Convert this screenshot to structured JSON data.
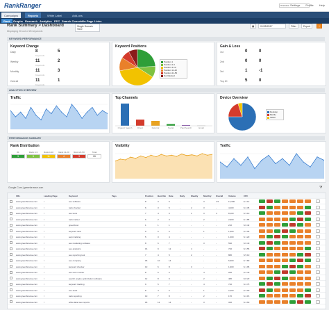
{
  "app": {
    "logo": "RankRanger"
  },
  "top": {
    "links": [
      "Settings",
      "Profile",
      "Help"
    ],
    "search_value": "Overview"
  },
  "tabs": [
    {
      "label": "Campaigns",
      "state": "light"
    },
    {
      "label": "Reports",
      "state": "active"
    },
    {
      "label": "White Label",
      "state": "dark"
    },
    {
      "label": "Add-ons",
      "state": "dark"
    }
  ],
  "nav": [
    "Rank",
    "Graphs",
    "Research",
    "Analytics",
    "PPC",
    "Search Console",
    "On-Page",
    "Links"
  ],
  "header": {
    "title": "Rank Summary > Dashboard",
    "select": "Single Domain View",
    "note": "Displaying 26 out of 26 keywords",
    "date": "01/05/2017",
    "buttons": [
      "Filter",
      "Export"
    ]
  },
  "sections": {
    "keyword_performance": "KEYWORD PERFORMANCE",
    "analytics_overview": "ANALYTICS OVERVIEW",
    "performance_summary": "PERFORMANCE SUMMARY"
  },
  "keyword_change": {
    "title": "Keyword Change",
    "rows": [
      {
        "label": "Daily",
        "value": "8",
        "sub": "Keywords"
      },
      {
        "label": "Weekly",
        "value": "11",
        "sub": "Keywords"
      },
      {
        "label": "Monthly",
        "value": "11",
        "sub": "Keywords"
      },
      {
        "label": "Overall",
        "value": "11",
        "sub": "Keywords"
      }
    ],
    "right_values": [
      "5",
      "2",
      "3",
      "1"
    ]
  },
  "keyword_positions": {
    "title": "Keyword Positions",
    "legend": [
      "Position 1",
      "Position 2-3",
      "Position 4-10",
      "Position 11-20",
      "Position 21-50",
      "Not Ranked"
    ],
    "slices": [
      {
        "value": 24,
        "color": "#2e9e38"
      },
      {
        "value": 10,
        "color": "#7fc241"
      },
      {
        "value": 38,
        "color": "#f2c200"
      },
      {
        "value": 12,
        "color": "#e9802a"
      },
      {
        "value": 8,
        "color": "#d43b2c"
      },
      {
        "value": 8,
        "color": "#8b1b1b"
      }
    ]
  },
  "gain_loss": {
    "title": "Gain & Loss",
    "rows": [
      {
        "label": "1st",
        "value": "0",
        "change": "0"
      },
      {
        "label": "2nd",
        "value": "0",
        "change": "0"
      },
      {
        "label": "3rd",
        "value": "1",
        "change": "-1"
      },
      {
        "label": "Top 10",
        "value": "5",
        "change": "0"
      }
    ]
  },
  "traffic": {
    "title": "Traffic",
    "values": [
      60,
      40,
      55,
      35,
      70,
      45,
      30,
      65,
      50,
      75,
      55,
      40,
      80,
      60,
      35,
      55,
      70,
      45,
      60,
      50
    ]
  },
  "top_channels": {
    "title": "Top Channels",
    "categories": [
      "Organic Search",
      "Direct",
      "Referral",
      "Social",
      "Paid Search",
      "Email"
    ],
    "values": [
      100,
      28,
      22,
      8,
      3,
      1
    ],
    "colors": [
      "#2b6fb5",
      "#d43b2c",
      "#e9a321",
      "#2e9e38",
      "#7a3fa0",
      "#999"
    ]
  },
  "device_overview": {
    "title": "Device Overview",
    "legend": [
      "Desktop",
      "Mobile",
      "Tablet"
    ],
    "slices": [
      {
        "value": 75,
        "color": "#2b6fb5"
      },
      {
        "value": 20,
        "color": "#d43b2c"
      },
      {
        "value": 5,
        "color": "#f2c200"
      }
    ]
  },
  "rank_distribution": {
    "title": "Rank Distribution",
    "headers": [
      "#1",
      "Rank 2-3",
      "Rank 4-10",
      "Rank 11-20",
      "Rank 21-50",
      "Total"
    ],
    "values": [
      "3",
      "5",
      "11",
      "4",
      "3",
      "26"
    ],
    "colors": [
      "#2e9e38",
      "#7fc241",
      "#f2c200",
      "#e9802a",
      "#d43b2c",
      "#ffffff"
    ]
  },
  "visibility": {
    "title": "Visibility",
    "values": [
      45,
      50,
      48,
      55,
      52,
      58,
      54,
      60,
      56,
      62,
      58,
      60,
      57,
      63,
      59,
      61,
      58,
      64,
      60,
      62
    ]
  },
  "traffic2": {
    "title": "Traffic",
    "values": [
      50,
      35,
      60,
      40,
      65,
      30,
      55,
      70,
      45,
      60,
      40,
      75,
      50,
      35,
      65,
      55
    ]
  },
  "table": {
    "filter_label": "Google.Com | greenbrowse.com",
    "headers": [
      "URL",
      "Landing Page",
      "Keyword",
      "Tags",
      "Position",
      "Best Rank",
      "Date",
      "Daily",
      "Weekly",
      "Monthly",
      "Overall",
      "Volume",
      "CPC"
    ],
    "rows": [
      [
        "www.greenbrowse.com",
        "/",
        "seo software",
        "",
        "8",
        "3",
        "5",
        "-",
        "-",
        "3",
        "4.5",
        "13,300",
        "$ 4.12"
      ],
      [
        "www.greenbrowse.com",
        "/",
        "rank checker",
        "",
        "6",
        "3",
        "5",
        "-",
        "2",
        "3",
        "-",
        "4,400",
        "$ 2.35"
      ],
      [
        "www.greenbrowse.com",
        "/",
        "seo tools",
        "",
        "7",
        "4",
        "6",
        "-",
        "1",
        "3",
        "4",
        "8,100",
        "$ 3.10"
      ],
      [
        "www.greenbrowse.com",
        "/",
        "rank tracker",
        "",
        "6",
        "2",
        "3",
        "-",
        "-",
        "2",
        "-",
        "2,900",
        "$ 1.85"
      ],
      [
        "www.greenbrowse.com",
        "/",
        "greenbrow",
        "",
        "1",
        "1",
        "1",
        "-",
        "-",
        "-",
        "-",
        "210",
        "$ 0.42"
      ],
      [
        "www.greenbrowse.com",
        "/",
        "keyword rank",
        "",
        "9",
        "5",
        "6",
        "-",
        "-",
        "1",
        "-",
        "1,600",
        "$ 2.05"
      ],
      [
        "www.greenbrowse.com",
        "/",
        "serp tracking",
        "",
        "5",
        "3",
        "4",
        "-",
        "-",
        "-",
        "-",
        "1,300",
        "$ 1.20"
      ],
      [
        "www.greenbrowse.com",
        "/",
        "seo marketing software",
        "",
        "8",
        "6",
        "7",
        "-",
        "-",
        "3",
        "-",
        "590",
        "$ 6.40"
      ],
      [
        "www.greenbrowse.com",
        "/",
        "seo analytics",
        "",
        "16",
        "9",
        "12",
        "-",
        "4",
        "-",
        "-",
        "720",
        "$ 3.55"
      ],
      [
        "www.greenbrowse.com",
        "/",
        "seo reporting tool",
        "",
        "7",
        "4",
        "5",
        "-",
        "2",
        "-",
        "-",
        "880",
        "$ 5.10"
      ],
      [
        "www.greenbrowse.com",
        "/",
        "seo company",
        "",
        "18",
        "10",
        "14",
        "-",
        "-",
        "-",
        "-",
        "6,600",
        "$ 7.80"
      ],
      [
        "www.greenbrowse.com",
        "/",
        "keyword checker",
        "",
        "10",
        "6",
        "8",
        "-",
        "3",
        "-",
        "-",
        "1,900",
        "$ 1.95"
      ],
      [
        "www.greenbrowse.com",
        "/",
        "seo rank monitor",
        "",
        "8",
        "5",
        "6",
        "-",
        "-",
        "4",
        "-",
        "260",
        "$ 2.40"
      ],
      [
        "www.greenbrowse.com",
        "/",
        "search engine optimization software",
        "",
        "12",
        "8",
        "9",
        "-",
        "-",
        "2",
        "-",
        "480",
        "$ 8.20"
      ],
      [
        "www.greenbrowse.com",
        "/",
        "keyword tracking",
        "",
        "9",
        "5",
        "7",
        "-",
        "-",
        "4",
        "-",
        "720",
        "$ 2.75"
      ],
      [
        "www.greenbrowse.com",
        "/",
        "seo audit",
        "",
        "8",
        "4",
        "6",
        "-",
        "-",
        "1",
        "-",
        "2,400",
        "$ 3.90"
      ],
      [
        "www.greenbrowse.com",
        "/",
        "rank reporting",
        "",
        "10",
        "7",
        "8",
        "-",
        "-",
        "2",
        "-",
        "170",
        "$ 2.15"
      ],
      [
        "www.greenbrowse.com",
        "/",
        "white label seo reports",
        "",
        "18",
        "12",
        "14",
        "-",
        "-",
        "3",
        "-",
        "320",
        "$ 4.60"
      ]
    ]
  },
  "colors": {
    "green": "#2e9e38",
    "orange": "#e9802a",
    "red": "#c0392b",
    "blue": "#2b6fb5"
  }
}
